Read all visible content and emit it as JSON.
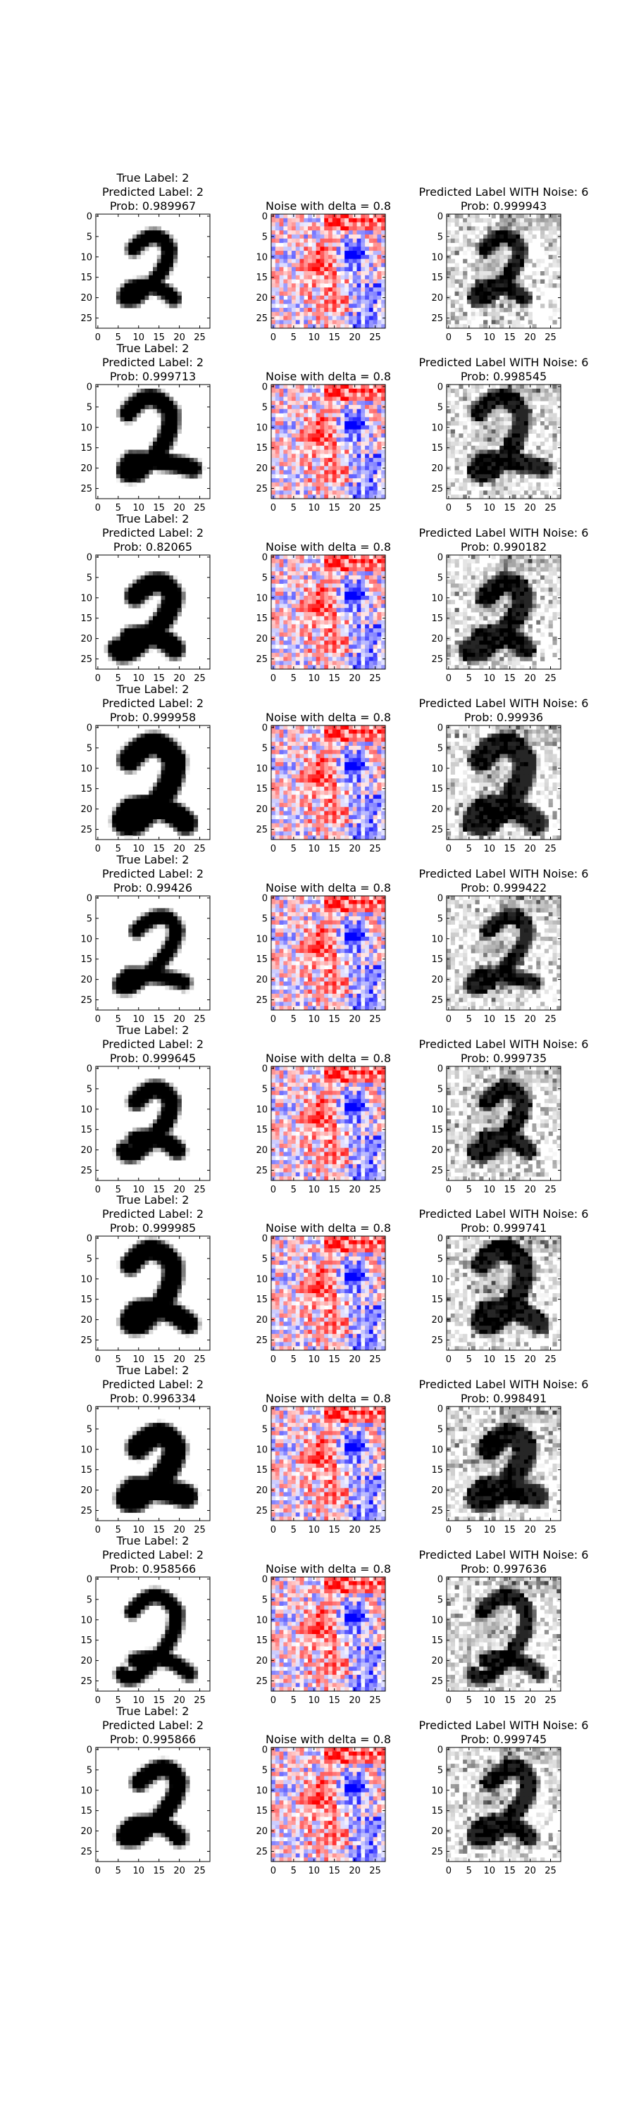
{
  "figure": {
    "x_ticks": [
      "0",
      "5",
      "10",
      "15",
      "20",
      "25"
    ],
    "y_ticks": [
      "0",
      "5",
      "10",
      "15",
      "20",
      "25"
    ]
  },
  "chart_data": [
    {
      "type": "heatmap",
      "grid_size": 28,
      "xlim": [
        0,
        27
      ],
      "ylim": [
        27,
        0
      ],
      "columns": [
        {
          "role": "original_digit",
          "colormap": "greys"
        },
        {
          "role": "noise",
          "colormap": "bwr",
          "title": "Noise with delta = 0.8"
        },
        {
          "role": "noisy_digit",
          "colormap": "greys"
        }
      ],
      "rows": [
        {
          "left_title": [
            "True Label: 2",
            "Predicted Label: 2",
            "Prob: 0.989967"
          ],
          "right_title": [
            "Predicted Label WITH Noise: 6",
            "Prob: 0.999943"
          ]
        },
        {
          "left_title": [
            "True Label: 2",
            "Predicted Label: 2",
            "Prob: 0.999713"
          ],
          "right_title": [
            "Predicted Label WITH Noise: 6",
            "Prob: 0.998545"
          ]
        },
        {
          "left_title": [
            "True Label: 2",
            "Predicted Label: 2",
            "Prob: 0.82065"
          ],
          "right_title": [
            "Predicted Label WITH Noise: 6",
            "Prob: 0.990182"
          ]
        },
        {
          "left_title": [
            "True Label: 2",
            "Predicted Label: 2",
            "Prob: 0.999958"
          ],
          "right_title": [
            "Predicted Label WITH Noise: 6",
            "Prob: 0.99936"
          ]
        },
        {
          "left_title": [
            "True Label: 2",
            "Predicted Label: 2",
            "Prob: 0.99426"
          ],
          "right_title": [
            "Predicted Label WITH Noise: 6",
            "Prob: 0.999422"
          ]
        },
        {
          "left_title": [
            "True Label: 2",
            "Predicted Label: 2",
            "Prob: 0.999645"
          ],
          "right_title": [
            "Predicted Label WITH Noise: 6",
            "Prob: 0.999735"
          ]
        },
        {
          "left_title": [
            "True Label: 2",
            "Predicted Label: 2",
            "Prob: 0.999985"
          ],
          "right_title": [
            "Predicted Label WITH Noise: 6",
            "Prob: 0.999741"
          ]
        },
        {
          "left_title": [
            "True Label: 2",
            "Predicted Label: 2",
            "Prob: 0.996334"
          ],
          "right_title": [
            "Predicted Label WITH Noise: 6",
            "Prob: 0.998491"
          ]
        },
        {
          "left_title": [
            "True Label: 2",
            "Predicted Label: 2",
            "Prob: 0.958566"
          ],
          "right_title": [
            "Predicted Label WITH Noise: 6",
            "Prob: 0.997636"
          ]
        },
        {
          "left_title": [
            "True Label: 2",
            "Predicted Label: 2",
            "Prob: 0.995866"
          ],
          "right_title": [
            "Predicted Label WITH Noise: 6",
            "Prob: 0.999745"
          ]
        }
      ]
    }
  ]
}
